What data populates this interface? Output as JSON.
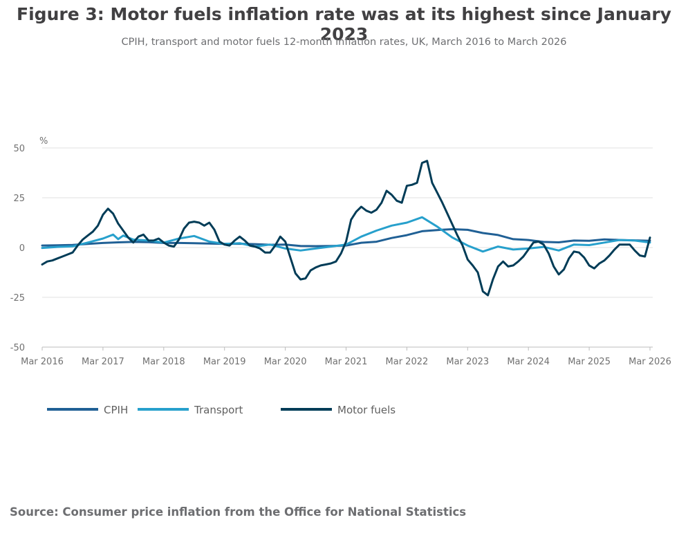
{
  "colors": {
    "cpih": "#206095",
    "transport": "#27a0cc",
    "motor_fuels": "#003c57",
    "grid": "#e0e0e0",
    "text": "#414042"
  },
  "source": "Source: Consumer price inflation from the Office for National Statistics",
  "chart_data": {
    "type": "line",
    "title": "Figure 3: Motor fuels inflation rate was at its highest since January 2023",
    "subtitle": "CPIH, transport and motor fuels 12-month inflation rates, UK, March 2016 to March 2026",
    "ylabel": "%",
    "ylim": [
      -50,
      50
    ],
    "yticks": [
      50,
      25,
      0,
      -25,
      -50
    ],
    "ytick_labels": [
      "50",
      "25",
      "0",
      "-25",
      "-50"
    ],
    "xlim": [
      "2016-03",
      "2026-03"
    ],
    "xtick_labels": [
      "Mar 2016",
      "Mar 2017",
      "Mar 2018",
      "Mar 2019",
      "Mar 2020",
      "Mar 2021",
      "Mar 2022",
      "Mar 2023",
      "Mar 2024",
      "Mar 2025",
      "Mar 2026"
    ],
    "grid": true,
    "legend_position": "bottom-left",
    "series": [
      {
        "name": "CPIH",
        "key": "cpih",
        "points": [
          [
            "2016-03",
            1.0
          ],
          [
            "2016-06",
            1.1
          ],
          [
            "2016-09",
            1.3
          ],
          [
            "2016-12",
            1.8
          ],
          [
            "2017-03",
            2.3
          ],
          [
            "2017-06",
            2.6
          ],
          [
            "2017-09",
            2.8
          ],
          [
            "2017-12",
            2.7
          ],
          [
            "2018-03",
            2.3
          ],
          [
            "2018-06",
            2.3
          ],
          [
            "2018-09",
            2.2
          ],
          [
            "2018-12",
            2.0
          ],
          [
            "2019-03",
            1.8
          ],
          [
            "2019-06",
            1.9
          ],
          [
            "2019-09",
            1.7
          ],
          [
            "2019-12",
            1.4
          ],
          [
            "2020-03",
            1.5
          ],
          [
            "2020-06",
            0.8
          ],
          [
            "2020-09",
            0.7
          ],
          [
            "2020-12",
            0.8
          ],
          [
            "2021-03",
            1.0
          ],
          [
            "2021-06",
            2.4
          ],
          [
            "2021-09",
            2.9
          ],
          [
            "2021-12",
            4.8
          ],
          [
            "2022-03",
            6.2
          ],
          [
            "2022-06",
            8.2
          ],
          [
            "2022-09",
            8.8
          ],
          [
            "2022-12",
            9.2
          ],
          [
            "2023-03",
            8.9
          ],
          [
            "2023-06",
            7.3
          ],
          [
            "2023-09",
            6.3
          ],
          [
            "2023-12",
            4.2
          ],
          [
            "2024-03",
            3.8
          ],
          [
            "2024-06",
            2.8
          ],
          [
            "2024-09",
            2.6
          ],
          [
            "2024-12",
            3.5
          ],
          [
            "2025-03",
            3.4
          ],
          [
            "2025-06",
            4.1
          ],
          [
            "2025-09",
            3.8
          ],
          [
            "2025-12",
            3.6
          ],
          [
            "2026-03",
            3.4
          ]
        ]
      },
      {
        "name": "Transport",
        "key": "transport",
        "points": [
          [
            "2016-03",
            -0.2
          ],
          [
            "2016-06",
            0.3
          ],
          [
            "2016-09",
            0.6
          ],
          [
            "2016-12",
            2.5
          ],
          [
            "2017-03",
            4.5
          ],
          [
            "2017-05",
            6.5
          ],
          [
            "2017-06",
            4.2
          ],
          [
            "2017-07",
            6.0
          ],
          [
            "2017-09",
            4.0
          ],
          [
            "2017-12",
            3.5
          ],
          [
            "2018-03",
            2.5
          ],
          [
            "2018-06",
            4.5
          ],
          [
            "2018-09",
            5.8
          ],
          [
            "2018-12",
            3.0
          ],
          [
            "2019-03",
            1.8
          ],
          [
            "2019-06",
            2.2
          ],
          [
            "2019-09",
            0.5
          ],
          [
            "2019-12",
            1.5
          ],
          [
            "2020-03",
            -0.5
          ],
          [
            "2020-06",
            -1.5
          ],
          [
            "2020-09",
            -0.5
          ],
          [
            "2020-12",
            0.5
          ],
          [
            "2021-03",
            1.5
          ],
          [
            "2021-06",
            5.5
          ],
          [
            "2021-09",
            8.5
          ],
          [
            "2021-12",
            11.0
          ],
          [
            "2022-03",
            12.5
          ],
          [
            "2022-06",
            15.2
          ],
          [
            "2022-09",
            10.5
          ],
          [
            "2022-12",
            5.0
          ],
          [
            "2023-03",
            1.0
          ],
          [
            "2023-06",
            -2.0
          ],
          [
            "2023-09",
            0.5
          ],
          [
            "2023-12",
            -1.0
          ],
          [
            "2024-03",
            -0.5
          ],
          [
            "2024-06",
            0.3
          ],
          [
            "2024-09",
            -1.5
          ],
          [
            "2024-12",
            1.5
          ],
          [
            "2025-03",
            1.2
          ],
          [
            "2025-06",
            2.5
          ],
          [
            "2025-09",
            3.8
          ],
          [
            "2025-12",
            3.5
          ],
          [
            "2026-03",
            2.5
          ]
        ]
      },
      {
        "name": "Motor fuels",
        "key": "motor_fuels",
        "points": [
          [
            "2016-03",
            -8.5
          ],
          [
            "2016-04",
            -7
          ],
          [
            "2016-05",
            -6.5
          ],
          [
            "2016-06",
            -5.5
          ],
          [
            "2016-07",
            -4.5
          ],
          [
            "2016-08",
            -3.5
          ],
          [
            "2016-09",
            -2.5
          ],
          [
            "2016-10",
            1
          ],
          [
            "2016-11",
            4
          ],
          [
            "2016-12",
            6
          ],
          [
            "2017-01",
            8
          ],
          [
            "2017-02",
            11
          ],
          [
            "2017-03",
            16.5
          ],
          [
            "2017-04",
            19.5
          ],
          [
            "2017-05",
            17
          ],
          [
            "2017-06",
            12
          ],
          [
            "2017-07",
            8.5
          ],
          [
            "2017-08",
            5
          ],
          [
            "2017-09",
            2.5
          ],
          [
            "2017-10",
            5.5
          ],
          [
            "2017-11",
            6.5
          ],
          [
            "2017-12",
            3.5
          ],
          [
            "2018-01",
            3.5
          ],
          [
            "2018-02",
            4.5
          ],
          [
            "2018-03",
            2.5
          ],
          [
            "2018-04",
            1
          ],
          [
            "2018-05",
            0.5
          ],
          [
            "2018-06",
            4
          ],
          [
            "2018-07",
            9.5
          ],
          [
            "2018-08",
            12.5
          ],
          [
            "2018-09",
            13
          ],
          [
            "2018-10",
            12.5
          ],
          [
            "2018-11",
            11
          ],
          [
            "2018-12",
            12.5
          ],
          [
            "2019-01",
            9
          ],
          [
            "2019-02",
            3
          ],
          [
            "2019-03",
            1.5
          ],
          [
            "2019-04",
            1
          ],
          [
            "2019-05",
            3.5
          ],
          [
            "2019-06",
            5.5
          ],
          [
            "2019-07",
            3.5
          ],
          [
            "2019-08",
            1
          ],
          [
            "2019-09",
            0.5
          ],
          [
            "2019-10",
            -0.5
          ],
          [
            "2019-11",
            -2.5
          ],
          [
            "2019-12",
            -2.5
          ],
          [
            "2020-01",
            1
          ],
          [
            "2020-02",
            5.5
          ],
          [
            "2020-03",
            3
          ],
          [
            "2020-04",
            -5
          ],
          [
            "2020-05",
            -13
          ],
          [
            "2020-06",
            -16
          ],
          [
            "2020-07",
            -15.5
          ],
          [
            "2020-08",
            -11.5
          ],
          [
            "2020-09",
            -10
          ],
          [
            "2020-10",
            -9
          ],
          [
            "2020-11",
            -8.5
          ],
          [
            "2020-12",
            -8
          ],
          [
            "2021-01",
            -7
          ],
          [
            "2021-02",
            -3
          ],
          [
            "2021-03",
            3
          ],
          [
            "2021-04",
            14
          ],
          [
            "2021-05",
            18
          ],
          [
            "2021-06",
            20.5
          ],
          [
            "2021-07",
            18.5
          ],
          [
            "2021-08",
            17.5
          ],
          [
            "2021-09",
            19
          ],
          [
            "2021-10",
            22.5
          ],
          [
            "2021-11",
            28.5
          ],
          [
            "2021-12",
            26.5
          ],
          [
            "2022-01",
            23.5
          ],
          [
            "2022-02",
            22.5
          ],
          [
            "2022-03",
            31
          ],
          [
            "2022-04",
            31.5
          ],
          [
            "2022-05",
            32.5
          ],
          [
            "2022-06",
            42.5
          ],
          [
            "2022-07",
            43.5
          ],
          [
            "2022-08",
            32.5
          ],
          [
            "2022-09",
            27.5
          ],
          [
            "2022-10",
            22.5
          ],
          [
            "2022-11",
            17
          ],
          [
            "2022-12",
            11.5
          ],
          [
            "2023-01",
            6
          ],
          [
            "2023-02",
            1
          ],
          [
            "2023-03",
            -6
          ],
          [
            "2023-04",
            -9
          ],
          [
            "2023-05",
            -12.5
          ],
          [
            "2023-06",
            -22
          ],
          [
            "2023-07",
            -24
          ],
          [
            "2023-08",
            -16
          ],
          [
            "2023-09",
            -9.5
          ],
          [
            "2023-10",
            -7
          ],
          [
            "2023-11",
            -9.5
          ],
          [
            "2023-12",
            -9
          ],
          [
            "2024-01",
            -7
          ],
          [
            "2024-02",
            -4.5
          ],
          [
            "2024-03",
            -1
          ],
          [
            "2024-04",
            2.5
          ],
          [
            "2024-05",
            3
          ],
          [
            "2024-06",
            1.5
          ],
          [
            "2024-07",
            -3
          ],
          [
            "2024-08",
            -9.5
          ],
          [
            "2024-09",
            -13.5
          ],
          [
            "2024-10",
            -11
          ],
          [
            "2024-11",
            -5.5
          ],
          [
            "2024-12",
            -2
          ],
          [
            "2025-01",
            -2.5
          ],
          [
            "2025-02",
            -5
          ],
          [
            "2025-03",
            -9
          ],
          [
            "2025-04",
            -10.5
          ],
          [
            "2025-05",
            -8
          ],
          [
            "2025-06",
            -6.5
          ],
          [
            "2025-07",
            -4
          ],
          [
            "2025-08",
            -1
          ],
          [
            "2025-09",
            1.5
          ],
          [
            "2025-10",
            1.5
          ],
          [
            "2025-11",
            1.5
          ],
          [
            "2025-12",
            -1.5
          ],
          [
            "2026-01",
            -4
          ],
          [
            "2026-02",
            -4.5
          ],
          [
            "2026-03",
            5
          ]
        ]
      }
    ]
  }
}
